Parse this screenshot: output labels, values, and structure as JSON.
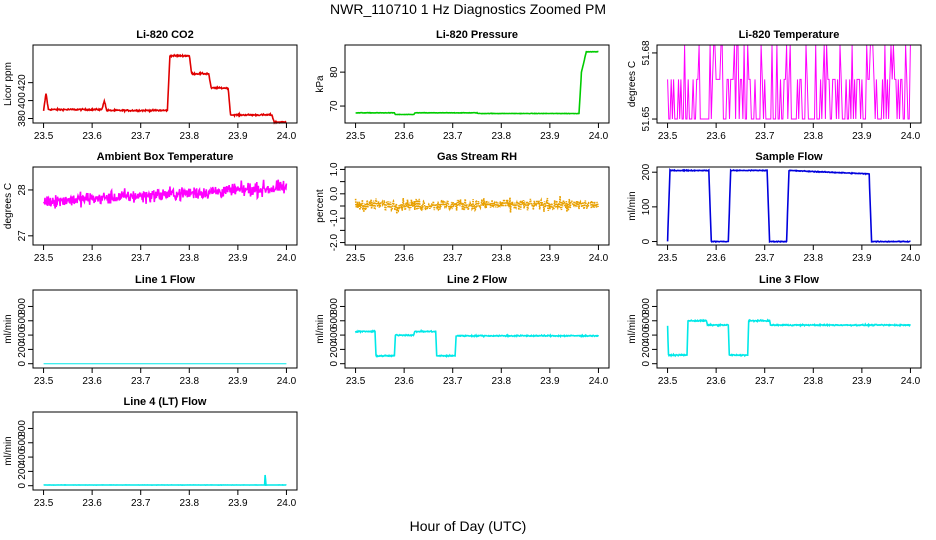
{
  "figure": {
    "title": "NWR_110710  1 Hz Diagnostics Zoomed PM",
    "xlabel": "Hour of Day (UTC)"
  },
  "chart_data": [
    {
      "type": "line",
      "title": "Li-820 CO2",
      "ylabel": "Licor ppm",
      "color": "#e00000",
      "xlim": [
        23.5,
        24.0
      ],
      "ylim": [
        375,
        462
      ],
      "xticks": [
        "23.5",
        "23.6",
        "23.7",
        "23.8",
        "23.9",
        "24.0"
      ],
      "yticks": [
        380,
        400,
        420
      ],
      "steps": [
        [
          23.5,
          388
        ],
        [
          23.505,
          408
        ],
        [
          23.51,
          390
        ],
        [
          23.62,
          390
        ],
        [
          23.625,
          400
        ],
        [
          23.63,
          389
        ],
        [
          23.755,
          389
        ],
        [
          23.76,
          450
        ],
        [
          23.8,
          450
        ],
        [
          23.805,
          430
        ],
        [
          23.84,
          430
        ],
        [
          23.845,
          414
        ],
        [
          23.88,
          414
        ],
        [
          23.885,
          384
        ],
        [
          23.97,
          384
        ],
        [
          23.975,
          376
        ],
        [
          24.0,
          376
        ]
      ],
      "noise": 1.5
    },
    {
      "type": "line",
      "title": "Li-820 Pressure",
      "ylabel": "kPa",
      "color": "#00cc00",
      "xlim": [
        23.5,
        24.0
      ],
      "ylim": [
        65,
        88
      ],
      "xticks": [
        "23.5",
        "23.6",
        "23.7",
        "23.8",
        "23.9",
        "24.0"
      ],
      "yticks": [
        70,
        80
      ],
      "steps": [
        [
          23.5,
          68
        ],
        [
          23.58,
          68
        ],
        [
          23.582,
          67.5
        ],
        [
          23.62,
          67.5
        ],
        [
          23.622,
          68
        ],
        [
          23.75,
          68
        ],
        [
          23.752,
          67.8
        ],
        [
          23.96,
          67.8
        ],
        [
          23.965,
          80
        ],
        [
          23.975,
          86
        ],
        [
          24.0,
          86
        ]
      ],
      "noise": 0.1
    },
    {
      "type": "line",
      "title": "Li-820 Temperature",
      "ylabel": "degrees C",
      "color": "#ff00ff",
      "xlim": [
        23.5,
        24.0
      ],
      "ylim": [
        51.6482,
        51.6836
      ],
      "xticks": [
        "23.5",
        "23.6",
        "23.7",
        "23.8",
        "23.9",
        "24.0"
      ],
      "yticks": [
        51.65,
        51.68
      ],
      "mode": "discrete",
      "levels": [
        51.65,
        51.668,
        51.684
      ],
      "noise": 0
    },
    {
      "type": "line",
      "title": "Ambient Box Temperature",
      "ylabel": "degrees C",
      "color": "#ff00ff",
      "xlim": [
        23.5,
        24.0
      ],
      "ylim": [
        26.8,
        28.5
      ],
      "xticks": [
        "23.5",
        "23.6",
        "23.7",
        "23.8",
        "23.9",
        "24.0"
      ],
      "yticks": [
        27.0,
        28.0
      ],
      "steps": [
        [
          23.5,
          27.75
        ],
        [
          24.0,
          28.05
        ]
      ],
      "noise": 0.25
    },
    {
      "type": "line",
      "title": "Gas Stream RH",
      "ylabel": "percent",
      "color": "#e8a000",
      "xlim": [
        23.5,
        24.0
      ],
      "ylim": [
        -2.1,
        1.1
      ],
      "xticks": [
        "23.5",
        "23.6",
        "23.7",
        "23.8",
        "23.9",
        "24.0"
      ],
      "yticks": [
        -2.0,
        -1.0,
        0.0,
        1.0
      ],
      "yticks_minor": [
        -1.5,
        -0.5,
        0.5
      ],
      "steps": [
        [
          23.5,
          -0.45
        ],
        [
          24.0,
          -0.45
        ]
      ],
      "noise": 0.42,
      "dotted": true
    },
    {
      "type": "line",
      "title": "Sample Flow",
      "ylabel": "ml/min",
      "color": "#0000dd",
      "xlim": [
        23.5,
        24.0
      ],
      "ylim": [
        -10,
        215
      ],
      "xticks": [
        "23.5",
        "23.6",
        "23.7",
        "23.8",
        "23.9",
        "24.0"
      ],
      "yticks": [
        0,
        100,
        200
      ],
      "steps": [
        [
          23.5,
          0
        ],
        [
          23.505,
          205
        ],
        [
          23.585,
          205
        ],
        [
          23.59,
          0
        ],
        [
          23.625,
          0
        ],
        [
          23.63,
          205
        ],
        [
          23.705,
          205
        ],
        [
          23.71,
          0
        ],
        [
          23.745,
          0
        ],
        [
          23.75,
          205
        ],
        [
          23.915,
          195
        ],
        [
          23.92,
          0
        ],
        [
          24.0,
          0
        ]
      ],
      "noise": 2
    },
    {
      "type": "line",
      "title": "Line 1 Flow",
      "ylabel": "ml/min",
      "color": "#00e8e8",
      "xlim": [
        23.5,
        24.0
      ],
      "ylim": [
        -60,
        1030
      ],
      "xticks": [
        "23.5",
        "23.6",
        "23.7",
        "23.8",
        "23.9",
        "24.0"
      ],
      "yticks": [
        0,
        200,
        400,
        600,
        800
      ],
      "steps": [
        [
          23.5,
          0
        ],
        [
          24.0,
          0
        ]
      ],
      "noise": 0
    },
    {
      "type": "line",
      "title": "Line 2 Flow",
      "ylabel": "ml/min",
      "color": "#00e8e8",
      "xlim": [
        23.5,
        24.0
      ],
      "ylim": [
        -60,
        1030
      ],
      "xticks": [
        "23.5",
        "23.6",
        "23.7",
        "23.8",
        "23.9",
        "24.0"
      ],
      "yticks": [
        0,
        200,
        400,
        600,
        800
      ],
      "steps": [
        [
          23.5,
          450
        ],
        [
          23.54,
          450
        ],
        [
          23.542,
          110
        ],
        [
          23.58,
          110
        ],
        [
          23.582,
          400
        ],
        [
          23.62,
          400
        ],
        [
          23.622,
          450
        ],
        [
          23.665,
          450
        ],
        [
          23.667,
          110
        ],
        [
          23.705,
          110
        ],
        [
          23.707,
          390
        ],
        [
          24.0,
          390
        ]
      ],
      "noise": 15
    },
    {
      "type": "line",
      "title": "Line 3 Flow",
      "ylabel": "ml/min",
      "color": "#00e8e8",
      "xlim": [
        23.5,
        24.0
      ],
      "ylim": [
        -60,
        1030
      ],
      "xticks": [
        "23.5",
        "23.6",
        "23.7",
        "23.8",
        "23.9",
        "24.0"
      ],
      "yticks": [
        0,
        200,
        400,
        600,
        800
      ],
      "steps": [
        [
          23.5,
          520
        ],
        [
          23.502,
          120
        ],
        [
          23.54,
          120
        ],
        [
          23.542,
          600
        ],
        [
          23.58,
          600
        ],
        [
          23.582,
          540
        ],
        [
          23.625,
          540
        ],
        [
          23.627,
          120
        ],
        [
          23.665,
          120
        ],
        [
          23.667,
          600
        ],
        [
          23.71,
          600
        ],
        [
          23.712,
          540
        ],
        [
          24.0,
          540
        ]
      ],
      "noise": 15
    },
    {
      "type": "line",
      "title": "Line 4 (LT) Flow",
      "ylabel": "ml/min",
      "color": "#00e8e8",
      "xlim": [
        23.5,
        24.0
      ],
      "ylim": [
        -60,
        1030
      ],
      "xticks": [
        "23.5",
        "23.6",
        "23.7",
        "23.8",
        "23.9",
        "24.0"
      ],
      "yticks": [
        0,
        200,
        400,
        600,
        800
      ],
      "steps": [
        [
          23.5,
          10
        ],
        [
          23.955,
          10
        ],
        [
          23.956,
          150
        ],
        [
          23.958,
          10
        ],
        [
          24.0,
          10
        ]
      ],
      "noise": 2
    }
  ]
}
